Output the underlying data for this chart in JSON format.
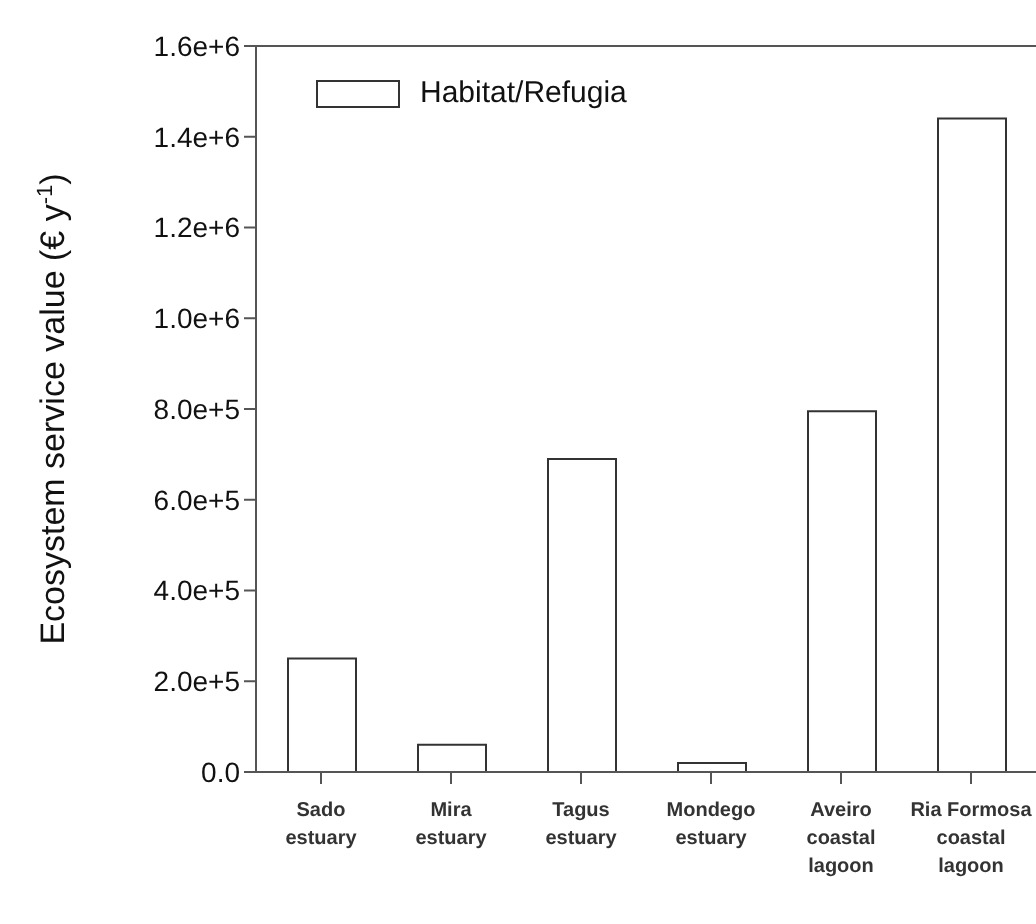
{
  "chart_data": {
    "type": "bar",
    "ylabel": "Ecosystem service value (€ y$^{-1}$)",
    "categories": [
      "Sado estuary",
      "Mira estuary",
      "Tagus estuary",
      "Mondego estuary",
      "Aveiro coastal lagoon",
      "Ria Formosa coastal lagoon"
    ],
    "series": [
      {
        "name": "Habitat/Refugia",
        "color": "#ffffff",
        "values": [
          250000,
          60000,
          690000,
          20000,
          795000,
          1440000
        ]
      }
    ],
    "ylim": [
      0,
      1600000
    ],
    "yticks": [
      {
        "value": 0,
        "label": "0.0"
      },
      {
        "value": 200000,
        "label": "2.0e+5"
      },
      {
        "value": 400000,
        "label": "4.0e+5"
      },
      {
        "value": 600000,
        "label": "6.0e+5"
      },
      {
        "value": 800000,
        "label": "8.0e+5"
      },
      {
        "value": 1000000,
        "label": "1.0e+6"
      },
      {
        "value": 1200000,
        "label": "1.2e+6"
      },
      {
        "value": 1400000,
        "label": "1.4e+6"
      },
      {
        "value": 1600000,
        "label": "1.6e+6"
      }
    ],
    "legend": "top left",
    "grid": false
  }
}
